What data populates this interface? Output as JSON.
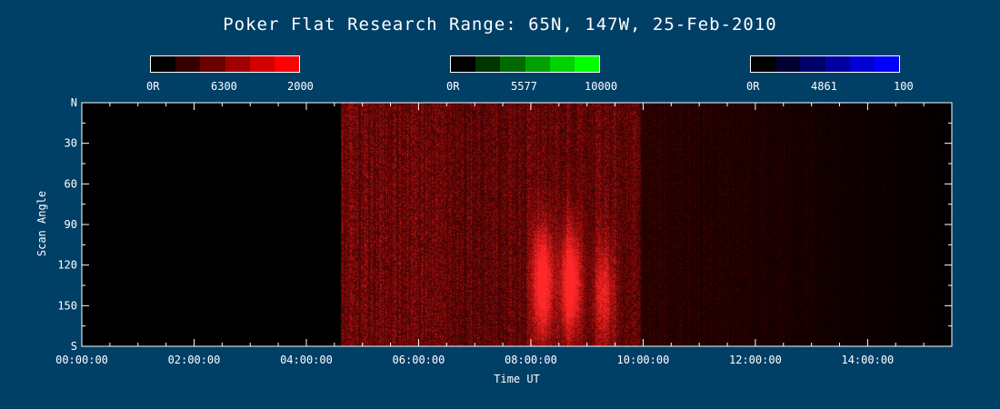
{
  "chart_data": {
    "type": "heatmap",
    "title": "Poker Flat Research Range: 65N, 147W, 25-Feb-2010",
    "xlabel": "Time UT",
    "ylabel": "Scan Angle",
    "x_unit": "hours UT",
    "xlim": [
      0,
      15.5
    ],
    "ylim": [
      0,
      180
    ],
    "x_ticks": [
      0,
      2,
      4,
      6,
      8,
      10,
      12,
      14
    ],
    "x_tick_labels": [
      "00:00:00",
      "02:00:00",
      "04:00:00",
      "06:00:00",
      "08:00:00",
      "10:00:00",
      "12:00:00",
      "14:00:00"
    ],
    "y_ticks": [
      0,
      30,
      60,
      90,
      120,
      150,
      180
    ],
    "y_tick_labels": [
      "N",
      "30",
      "60",
      "90",
      "120",
      "150",
      "S"
    ],
    "data_start_hour": 4.6,
    "intensity_profile": [
      {
        "hour": 4.6,
        "level": 0.55
      },
      {
        "hour": 7.0,
        "level": 0.5
      },
      {
        "hour": 9.9,
        "level": 0.5
      },
      {
        "hour": 10.0,
        "level": 0.22
      },
      {
        "hour": 12.0,
        "level": 0.15
      },
      {
        "hour": 15.5,
        "level": 0.02
      }
    ],
    "bright_features": [
      {
        "hour": 8.2,
        "angle": 133,
        "intensity": 1.0
      },
      {
        "hour": 8.7,
        "angle": 133,
        "intensity": 1.0
      },
      {
        "hour": 9.3,
        "angle": 140,
        "intensity": 0.6
      }
    ]
  },
  "colorbars": [
    {
      "min_label": "0R",
      "mid_label": "6300",
      "max_label": "2000",
      "colors": [
        "#000000",
        "#350000",
        "#6a0000",
        "#a00000",
        "#d20000",
        "#ff0000"
      ]
    },
    {
      "min_label": "0R",
      "mid_label": "5577",
      "max_label": "10000",
      "colors": [
        "#000000",
        "#003500",
        "#006a00",
        "#00a000",
        "#00d200",
        "#00ff00"
      ]
    },
    {
      "min_label": "0R",
      "mid_label": "4861",
      "max_label": "100",
      "colors": [
        "#000000",
        "#000035",
        "#00006a",
        "#0000a0",
        "#0000d2",
        "#0000ff"
      ]
    }
  ]
}
